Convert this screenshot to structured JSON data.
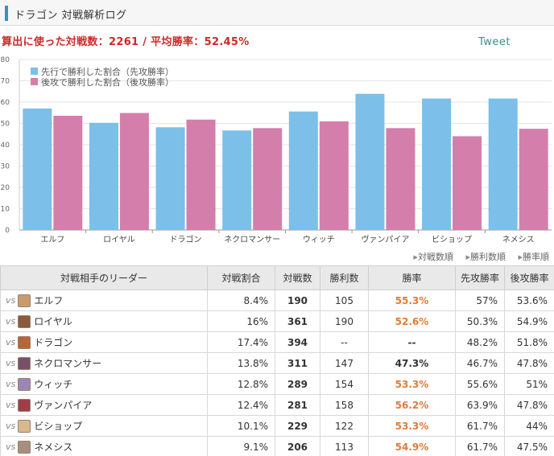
{
  "header": {
    "title": "ドラゴン 対戦解析ログ"
  },
  "summary": {
    "label_matches": "算出に使った対戦数：",
    "matches": "2261",
    "sep": " / ",
    "label_winrate": "平均勝率：",
    "winrate": "52.45%"
  },
  "tweet_label": "Tweet",
  "chart_data": {
    "type": "bar",
    "categories": [
      "エルフ",
      "ロイヤル",
      "ドラゴン",
      "ネクロマンサー",
      "ウィッチ",
      "ヴァンパイア",
      "ビショップ",
      "ネメシス"
    ],
    "series": [
      {
        "name": "先行で勝利した割合（先攻勝率）",
        "color": "#7cbfe9",
        "values": [
          57,
          50.3,
          48.2,
          46.7,
          55.6,
          63.9,
          61.7,
          61.7
        ]
      },
      {
        "name": "後攻で勝利した割合（後攻勝率）",
        "color": "#d47fab",
        "values": [
          53.6,
          54.9,
          51.8,
          47.8,
          51,
          47.8,
          44,
          47.5
        ]
      }
    ],
    "yticks": [
      0,
      10,
      20,
      30,
      40,
      50,
      60,
      70,
      80
    ],
    "ylim": [
      0,
      80
    ],
    "legend": "top-left",
    "grid": true
  },
  "sort": [
    "対戦数順",
    "勝利数順",
    "勝率順"
  ],
  "table": {
    "headers": [
      "対戦相手のリーダー",
      "対戦割合",
      "対戦数",
      "勝利数",
      "勝率",
      "先攻勝率",
      "後攻勝率"
    ],
    "vs": "vs",
    "rows": [
      {
        "leader": "エルフ",
        "share": "8.4%",
        "matches": "190",
        "wins": "105",
        "rate": "55.3%",
        "first": "57%",
        "second": "53.6%",
        "avatar": "#c89a6e",
        "rate_color": "#e07b39"
      },
      {
        "leader": "ロイヤル",
        "share": "16%",
        "matches": "361",
        "wins": "190",
        "rate": "52.6%",
        "first": "50.3%",
        "second": "54.9%",
        "avatar": "#8a5a3c",
        "rate_color": "#e07b39"
      },
      {
        "leader": "ドラゴン",
        "share": "17.4%",
        "matches": "394",
        "wins": "--",
        "rate": "--",
        "first": "48.2%",
        "second": "51.8%",
        "avatar": "#b5673a",
        "rate_color": "#333333"
      },
      {
        "leader": "ネクロマンサー",
        "share": "13.8%",
        "matches": "311",
        "wins": "147",
        "rate": "47.3%",
        "first": "46.7%",
        "second": "47.8%",
        "avatar": "#7a4f6a",
        "rate_color": "#333333"
      },
      {
        "leader": "ウィッチ",
        "share": "12.8%",
        "matches": "289",
        "wins": "154",
        "rate": "53.3%",
        "first": "55.6%",
        "second": "51%",
        "avatar": "#9a86b8",
        "rate_color": "#e07b39"
      },
      {
        "leader": "ヴァンパイア",
        "share": "12.4%",
        "matches": "281",
        "wins": "158",
        "rate": "56.2%",
        "first": "63.9%",
        "second": "47.8%",
        "avatar": "#9c3f46",
        "rate_color": "#e07b39"
      },
      {
        "leader": "ビショップ",
        "share": "10.1%",
        "matches": "229",
        "wins": "122",
        "rate": "53.3%",
        "first": "61.7%",
        "second": "44%",
        "avatar": "#d8b890",
        "rate_color": "#e07b39"
      },
      {
        "leader": "ネメシス",
        "share": "9.1%",
        "matches": "206",
        "wins": "113",
        "rate": "54.9%",
        "first": "61.7%",
        "second": "47.5%",
        "avatar": "#a88e7e",
        "rate_color": "#e07b39"
      }
    ]
  }
}
